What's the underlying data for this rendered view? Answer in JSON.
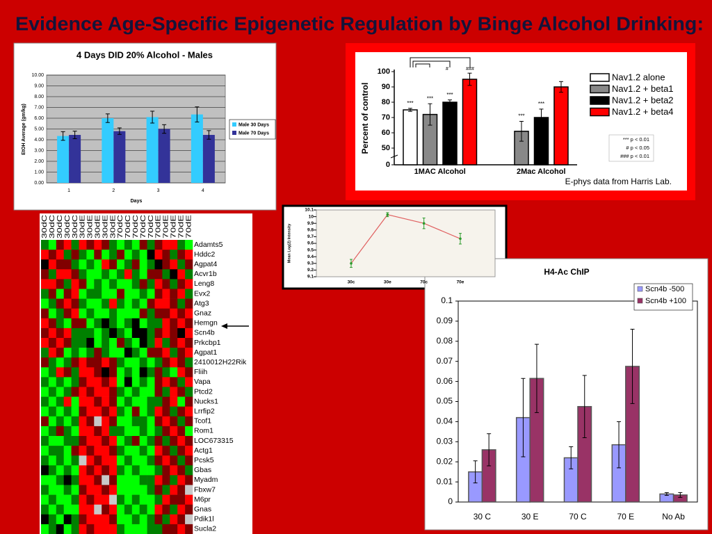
{
  "title": "Evidence Age-Specific Epigenetic Regulation by Binge Alcohol Drinking:",
  "chart_data": [
    {
      "type": "bar",
      "title": "4 Days DID 20% Alcohol - Males",
      "x_label": "Days",
      "y_label": "EtOH Average (gm/kg)",
      "categories": [
        "1",
        "2",
        "3",
        "4"
      ],
      "series": [
        {
          "name": "Male 30 Days",
          "color": "#33ccff",
          "values": [
            4.35,
            6.0,
            6.1,
            6.35
          ],
          "errors": [
            0.4,
            0.4,
            0.55,
            0.7
          ]
        },
        {
          "name": "Male 70 Days",
          "color": "#333399",
          "values": [
            4.45,
            4.8,
            5.0,
            4.45
          ],
          "errors": [
            0.35,
            0.3,
            0.4,
            0.4
          ]
        }
      ],
      "ylim": [
        0,
        10
      ],
      "yticks": [
        {
          "value": 0,
          "label": "0.00"
        },
        {
          "value": 1,
          "label": "1.00"
        },
        {
          "value": 2,
          "label": "2.00"
        },
        {
          "value": 3,
          "label": "3.00"
        },
        {
          "value": 4,
          "label": "4.00"
        },
        {
          "value": 5,
          "label": "5.00"
        },
        {
          "value": 6,
          "label": "6.00"
        },
        {
          "value": 7,
          "label": "7.00"
        },
        {
          "value": 8,
          "label": "8.00"
        },
        {
          "value": 9,
          "label": "9.00"
        },
        {
          "value": 10,
          "label": "10.00"
        }
      ],
      "grid": true,
      "legend": "right"
    },
    {
      "type": "bar",
      "y_label": "Percent of control",
      "categories": [
        "1MAC Alcohol",
        "2Mac Alcohol"
      ],
      "series": [
        {
          "name": "Nav1.2  alone",
          "color": "#ffffff",
          "values": [
            75,
            null
          ],
          "errors": [
            1,
            null
          ],
          "significance": [
            "***",
            null
          ]
        },
        {
          "name": "Nav1.2 + beta1",
          "color": "#888888",
          "values": [
            72,
            61
          ],
          "errors": [
            7,
            6.5
          ],
          "significance": [
            "***",
            "***"
          ]
        },
        {
          "name": "Nav1.2 + beta2",
          "color": "#000000",
          "values": [
            80,
            70
          ],
          "errors": [
            1.5,
            5.5
          ],
          "significance": [
            "***",
            "***"
          ]
        },
        {
          "name": "Nav1.2 + beta4",
          "color": "#ff0000",
          "values": [
            95,
            90
          ],
          "errors": [
            4,
            3.5
          ],
          "significance": [
            null,
            null
          ]
        }
      ],
      "bracket_labels": [
        "#",
        "###"
      ],
      "notes": [
        "*** p < 0.01",
        "# p < 0.05",
        "### p < 0.01"
      ],
      "caption": "E-phys data from Harris Lab.",
      "ylim": [
        0,
        100
      ],
      "axis_break": [
        0,
        50
      ],
      "yticks": [
        0,
        50,
        60,
        70,
        80,
        90,
        100
      ],
      "legend": "right"
    },
    {
      "type": "line",
      "y_label": "Mean Log(2) Intensity",
      "categories": [
        "30c",
        "30e",
        "70c",
        "70e"
      ],
      "values": [
        9.3,
        10.03,
        9.9,
        9.67
      ],
      "errors": [
        0.06,
        0.03,
        0.08,
        0.08
      ],
      "color": "#e06060",
      "error_color": "#2a9a2a",
      "ylim": [
        9.1,
        10.1
      ],
      "yticks": [
        9.1,
        9.2,
        9.3,
        9.4,
        9.5,
        9.6,
        9.7,
        9.8,
        9.9,
        10,
        10.1
      ]
    },
    {
      "type": "bar",
      "title": "H4-Ac ChIP",
      "categories": [
        "30 C",
        "30 E",
        "70 C",
        "70 E",
        "No Ab"
      ],
      "series": [
        {
          "name": "Scn4b  -500",
          "color": "#9999ff",
          "values": [
            0.015,
            0.042,
            0.022,
            0.0285,
            0.004
          ],
          "errors": [
            0.0055,
            0.0195,
            0.0055,
            0.0115,
            0.0007
          ]
        },
        {
          "name": "Scn4b  +100",
          "color": "#993366",
          "values": [
            0.026,
            0.0615,
            0.0475,
            0.0675,
            0.0035
          ],
          "errors": [
            0.008,
            0.017,
            0.0155,
            0.0185,
            0.0012
          ]
        }
      ],
      "ylim": [
        0,
        0.1
      ],
      "yticks": [
        0,
        0.01,
        0.02,
        0.03,
        0.04,
        0.05,
        0.06,
        0.07,
        0.08,
        0.09,
        0.1
      ],
      "legend": "upper right"
    },
    {
      "type": "heatmap",
      "columns": [
        "30dC",
        "30dC",
        "30dC",
        "30dC",
        "30dC",
        "30dE",
        "30dE",
        "30dE",
        "30dE",
        "30dE",
        "70dC",
        "70dC",
        "70dC",
        "70dC",
        "70dC",
        "70dE",
        "70dE",
        "70dE",
        "70dE",
        "70dE"
      ],
      "rows": [
        "Adamts5",
        "Hddc2",
        "Agpat4",
        "Acvr1b",
        "Leng8",
        "Evx2",
        "Atg3",
        "Gnaz",
        "Hemgn",
        "Scn4b",
        "Prkcbp1",
        "Agpat1",
        "2410012H22Rik",
        "Fliih",
        "Vapa",
        "Ptcd2",
        "Nucks1",
        "Lrrfip2",
        "Tcof1",
        "Rom1",
        "LOC673315",
        "Actg1",
        "Pcsk5",
        "Gbas",
        "Myadm",
        "Fbxw7",
        "M6pr",
        "Gnas",
        "Pdik1l",
        "Sucla2"
      ],
      "zlim": [
        -2,
        2
      ],
      "high_color": "#ff0000",
      "mid_color": "#000000",
      "low_color": "#00ff00",
      "missing_color": "#c8c8c8",
      "values": [
        [
          -1,
          -2,
          1,
          2,
          -1,
          2,
          1,
          2,
          1,
          -1,
          -2,
          -1,
          -2,
          1,
          -1,
          1,
          2,
          2,
          -1,
          -2
        ],
        [
          2,
          1,
          2,
          -1,
          1,
          -1,
          -2,
          1,
          -2,
          -1,
          1,
          -2,
          -1,
          -2,
          0,
          2,
          1,
          -1,
          1,
          2
        ],
        [
          0,
          2,
          1,
          1,
          -1,
          -2,
          -1,
          -2,
          2,
          1,
          -2,
          -1,
          1,
          -2,
          -1,
          0,
          1,
          2,
          -1,
          1
        ],
        [
          1,
          -1,
          2,
          2,
          1,
          -1,
          -2,
          -2,
          -1,
          -2,
          -1,
          2,
          -1,
          -2,
          1,
          1,
          -1,
          0,
          2,
          -1
        ],
        [
          2,
          2,
          1,
          -1,
          2,
          1,
          -2,
          -1,
          -2,
          -1,
          -2,
          -2,
          -1,
          1,
          -1,
          2,
          1,
          -1,
          1,
          2
        ],
        [
          -1,
          1,
          -2,
          1,
          2,
          -2,
          -1,
          -1,
          -2,
          -2,
          1,
          -2,
          -2,
          -1,
          -2,
          1,
          2,
          1,
          2,
          -1
        ],
        [
          -2,
          -1,
          1,
          2,
          1,
          -1,
          -2,
          -2,
          -1,
          2,
          -1,
          -2,
          -1,
          -2,
          1,
          2,
          2,
          1,
          -1,
          1
        ],
        [
          1,
          -2,
          -1,
          1,
          2,
          -2,
          -1,
          -2,
          -2,
          -1,
          -2,
          -2,
          -2,
          1,
          -1,
          1,
          1,
          2,
          1,
          2
        ],
        [
          2,
          1,
          -1,
          -2,
          1,
          1,
          -2,
          -1,
          0,
          -1,
          -2,
          -1,
          0,
          -2,
          -1,
          -1,
          2,
          1,
          2,
          1
        ],
        [
          1,
          2,
          1,
          2,
          -1,
          -1,
          -1,
          -2,
          -1,
          0,
          -1,
          -2,
          0,
          0,
          -1,
          1,
          2,
          1,
          0,
          2
        ],
        [
          2,
          1,
          2,
          1,
          -1,
          -1,
          0,
          -2,
          -1,
          -2,
          1,
          -1,
          -2,
          0,
          -1,
          2,
          -1,
          1,
          2,
          1
        ],
        [
          -1,
          2,
          1,
          -2,
          -1,
          -2,
          -1,
          1,
          -1,
          -2,
          -2,
          0,
          -1,
          -2,
          1,
          1,
          2,
          -1,
          1,
          2
        ],
        [
          1,
          -1,
          -2,
          -1,
          1,
          2,
          1,
          1,
          2,
          1,
          -1,
          -2,
          -2,
          -1,
          -2,
          -1,
          1,
          2,
          1,
          -1
        ],
        [
          -2,
          -1,
          2,
          1,
          -1,
          2,
          2,
          1,
          0,
          1,
          -2,
          -1,
          -2,
          0,
          -1,
          1,
          -1,
          -2,
          2,
          1
        ],
        [
          -1,
          -2,
          -1,
          -2,
          -1,
          1,
          2,
          2,
          1,
          2,
          -2,
          0,
          -2,
          -1,
          -2,
          1,
          2,
          1,
          -1,
          2
        ],
        [
          -2,
          -1,
          -2,
          -1,
          1,
          2,
          1,
          2,
          2,
          1,
          -1,
          -2,
          -1,
          -2,
          -2,
          1,
          -1,
          2,
          1,
          -1
        ],
        [
          -1,
          -2,
          -1,
          2,
          -2,
          2,
          2,
          1,
          2,
          1,
          -2,
          -1,
          -2,
          -2,
          -1,
          -1,
          1,
          2,
          -2,
          1
        ],
        [
          -2,
          -1,
          -2,
          -1,
          -2,
          1,
          2,
          2,
          1,
          2,
          -1,
          -2,
          1,
          -2,
          -1,
          2,
          1,
          -1,
          1,
          2
        ],
        [
          1,
          -2,
          -1,
          -2,
          -1,
          2,
          1,
          null,
          2,
          1,
          -2,
          -2,
          -1,
          -1,
          -2,
          1,
          2,
          1,
          -1,
          1
        ],
        [
          -2,
          -1,
          1,
          -1,
          -2,
          2,
          2,
          1,
          2,
          -1,
          -1,
          -2,
          -2,
          -1,
          -2,
          -1,
          1,
          2,
          1,
          -2
        ],
        [
          -1,
          -2,
          -2,
          -1,
          -1,
          1,
          2,
          2,
          1,
          2,
          -2,
          -1,
          1,
          -2,
          -1,
          1,
          -1,
          1,
          2,
          1
        ],
        [
          -2,
          -1,
          -1,
          -2,
          1,
          2,
          1,
          2,
          2,
          1,
          -1,
          -2,
          -2,
          -1,
          -2,
          2,
          1,
          -1,
          1,
          2
        ],
        [
          -1,
          -2,
          -1,
          -2,
          -1,
          null,
          2,
          1,
          2,
          2,
          -2,
          -1,
          -2,
          -2,
          -1,
          1,
          2,
          1,
          -1,
          1
        ],
        [
          0,
          -1,
          -2,
          -1,
          -2,
          2,
          1,
          2,
          1,
          2,
          -1,
          -2,
          -1,
          -2,
          -2,
          -1,
          1,
          2,
          1,
          -1
        ],
        [
          -2,
          -2,
          -1,
          0,
          -1,
          2,
          2,
          1,
          null,
          1,
          -2,
          -2,
          -2,
          -1,
          -1,
          2,
          1,
          -1,
          2,
          1
        ],
        [
          -1,
          -2,
          -2,
          -1,
          -2,
          1,
          2,
          2,
          1,
          2,
          -2,
          -2,
          -2,
          -2,
          -1,
          1,
          -1,
          2,
          1,
          null
        ],
        [
          -2,
          -1,
          -2,
          -2,
          -1,
          2,
          1,
          2,
          2,
          null,
          -1,
          -2,
          -1,
          -2,
          -2,
          -1,
          2,
          1,
          1,
          2
        ],
        [
          -1,
          -2,
          -1,
          -2,
          -2,
          2,
          2,
          null,
          1,
          2,
          -2,
          -1,
          -2,
          -1,
          -2,
          2,
          1,
          -1,
          2,
          1
        ],
        [
          0,
          -1,
          -2,
          0,
          -1,
          1,
          2,
          2,
          2,
          1,
          -2,
          -2,
          -1,
          -2,
          -1,
          1,
          -1,
          2,
          1,
          null
        ],
        [
          -2,
          -1,
          0,
          -2,
          -1,
          2,
          1,
          2,
          2,
          2,
          -1,
          -2,
          -2,
          -2,
          -1,
          -1,
          1,
          1,
          2,
          1
        ]
      ]
    }
  ]
}
